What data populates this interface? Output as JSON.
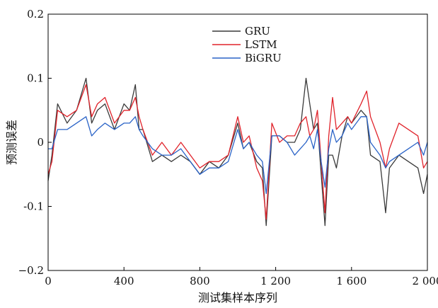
{
  "chart_data": {
    "type": "line",
    "title": "",
    "xlabel": "测试集样本序列",
    "ylabel": "预测误差",
    "xlim": [
      0,
      2000
    ],
    "ylim": [
      -0.2,
      0.2
    ],
    "x_ticks": [
      {
        "value": 0,
        "label": "0"
      },
      {
        "value": 400,
        "label": "400"
      },
      {
        "value": 800,
        "label": "800"
      },
      {
        "value": 1200,
        "label": "1 200"
      },
      {
        "value": 1600,
        "label": "1 600"
      },
      {
        "value": 2000,
        "label": "2 000"
      }
    ],
    "y_ticks": [
      {
        "value": -0.2,
        "label": "−0.2"
      },
      {
        "value": -0.1,
        "label": "-0.1"
      },
      {
        "value": 0,
        "label": "0"
      },
      {
        "value": 0.1,
        "label": "0.1"
      },
      {
        "value": 0.2,
        "label": "0.2"
      }
    ],
    "grid": false,
    "legend_position": "top-center",
    "series": [
      {
        "name": "GRU",
        "color": "#3a3a3a",
        "x": [
          0,
          20,
          50,
          100,
          150,
          200,
          230,
          260,
          300,
          350,
          400,
          430,
          460,
          480,
          500,
          550,
          600,
          650,
          700,
          750,
          800,
          850,
          900,
          950,
          1000,
          1030,
          1060,
          1100,
          1130,
          1150,
          1180,
          1220,
          1260,
          1300,
          1330,
          1360,
          1380,
          1400,
          1420,
          1440,
          1460,
          1480,
          1500,
          1520,
          1550,
          1580,
          1600,
          1650,
          1680,
          1700,
          1750,
          1780,
          1800,
          1850,
          1900,
          1950,
          1980,
          2000
        ],
        "y": [
          -0.06,
          -0.02,
          0.06,
          0.03,
          0.05,
          0.1,
          0.03,
          0.05,
          0.06,
          0.02,
          0.06,
          0.05,
          0.09,
          0.02,
          0.02,
          -0.03,
          -0.02,
          -0.03,
          -0.02,
          -0.03,
          -0.05,
          -0.03,
          -0.04,
          -0.02,
          0.03,
          -0.01,
          0.0,
          -0.03,
          -0.04,
          -0.13,
          0.01,
          0.01,
          0.0,
          0.0,
          0.02,
          0.1,
          0.06,
          0.02,
          0.03,
          -0.05,
          -0.13,
          -0.02,
          -0.02,
          -0.04,
          0.01,
          0.04,
          0.03,
          0.05,
          0.04,
          -0.02,
          -0.03,
          -0.11,
          -0.04,
          -0.02,
          -0.03,
          -0.04,
          -0.08,
          -0.05
        ]
      },
      {
        "name": "LSTM",
        "color": "#e0232b",
        "x": [
          0,
          20,
          50,
          100,
          150,
          200,
          230,
          260,
          300,
          350,
          400,
          430,
          460,
          480,
          500,
          550,
          600,
          650,
          700,
          750,
          800,
          850,
          900,
          950,
          1000,
          1030,
          1060,
          1100,
          1130,
          1150,
          1180,
          1220,
          1260,
          1300,
          1330,
          1360,
          1380,
          1400,
          1420,
          1440,
          1460,
          1480,
          1500,
          1520,
          1550,
          1580,
          1600,
          1650,
          1680,
          1700,
          1750,
          1780,
          1800,
          1850,
          1900,
          1950,
          1980,
          2000
        ],
        "y": [
          -0.05,
          -0.03,
          0.05,
          0.04,
          0.05,
          0.09,
          0.04,
          0.06,
          0.07,
          0.03,
          0.05,
          0.05,
          0.07,
          0.04,
          0.02,
          -0.02,
          0.0,
          -0.02,
          0.0,
          -0.02,
          -0.04,
          -0.03,
          -0.03,
          -0.02,
          0.04,
          0.0,
          0.01,
          -0.04,
          -0.06,
          -0.12,
          0.03,
          0.0,
          0.01,
          0.01,
          0.03,
          0.04,
          0.01,
          0.02,
          0.05,
          -0.03,
          -0.11,
          0.01,
          0.07,
          0.02,
          0.03,
          0.04,
          0.03,
          0.06,
          0.08,
          0.04,
          0.0,
          -0.04,
          -0.01,
          0.03,
          0.02,
          0.01,
          -0.04,
          -0.03
        ]
      },
      {
        "name": "BiGRU",
        "color": "#2a63c7",
        "x": [
          0,
          20,
          50,
          100,
          150,
          200,
          230,
          260,
          300,
          350,
          400,
          430,
          460,
          480,
          500,
          550,
          600,
          650,
          700,
          750,
          800,
          850,
          900,
          950,
          1000,
          1030,
          1060,
          1100,
          1130,
          1150,
          1180,
          1220,
          1260,
          1300,
          1330,
          1360,
          1380,
          1400,
          1420,
          1440,
          1460,
          1480,
          1500,
          1520,
          1550,
          1580,
          1600,
          1650,
          1680,
          1700,
          1750,
          1780,
          1800,
          1850,
          1900,
          1950,
          1980,
          2000
        ],
        "y": [
          -0.01,
          -0.01,
          0.02,
          0.02,
          0.03,
          0.04,
          0.01,
          0.02,
          0.03,
          0.02,
          0.03,
          0.03,
          0.04,
          0.02,
          0.01,
          -0.01,
          -0.02,
          -0.02,
          -0.01,
          -0.03,
          -0.05,
          -0.04,
          -0.04,
          -0.03,
          0.02,
          -0.01,
          0.0,
          -0.02,
          -0.03,
          -0.08,
          0.01,
          0.01,
          0.0,
          -0.02,
          -0.01,
          0.0,
          0.01,
          -0.01,
          0.02,
          -0.03,
          -0.07,
          -0.01,
          0.02,
          0.0,
          0.01,
          0.03,
          0.02,
          0.04,
          0.04,
          0.0,
          -0.02,
          -0.04,
          -0.03,
          -0.02,
          -0.01,
          0.0,
          -0.02,
          0.0
        ]
      }
    ]
  }
}
